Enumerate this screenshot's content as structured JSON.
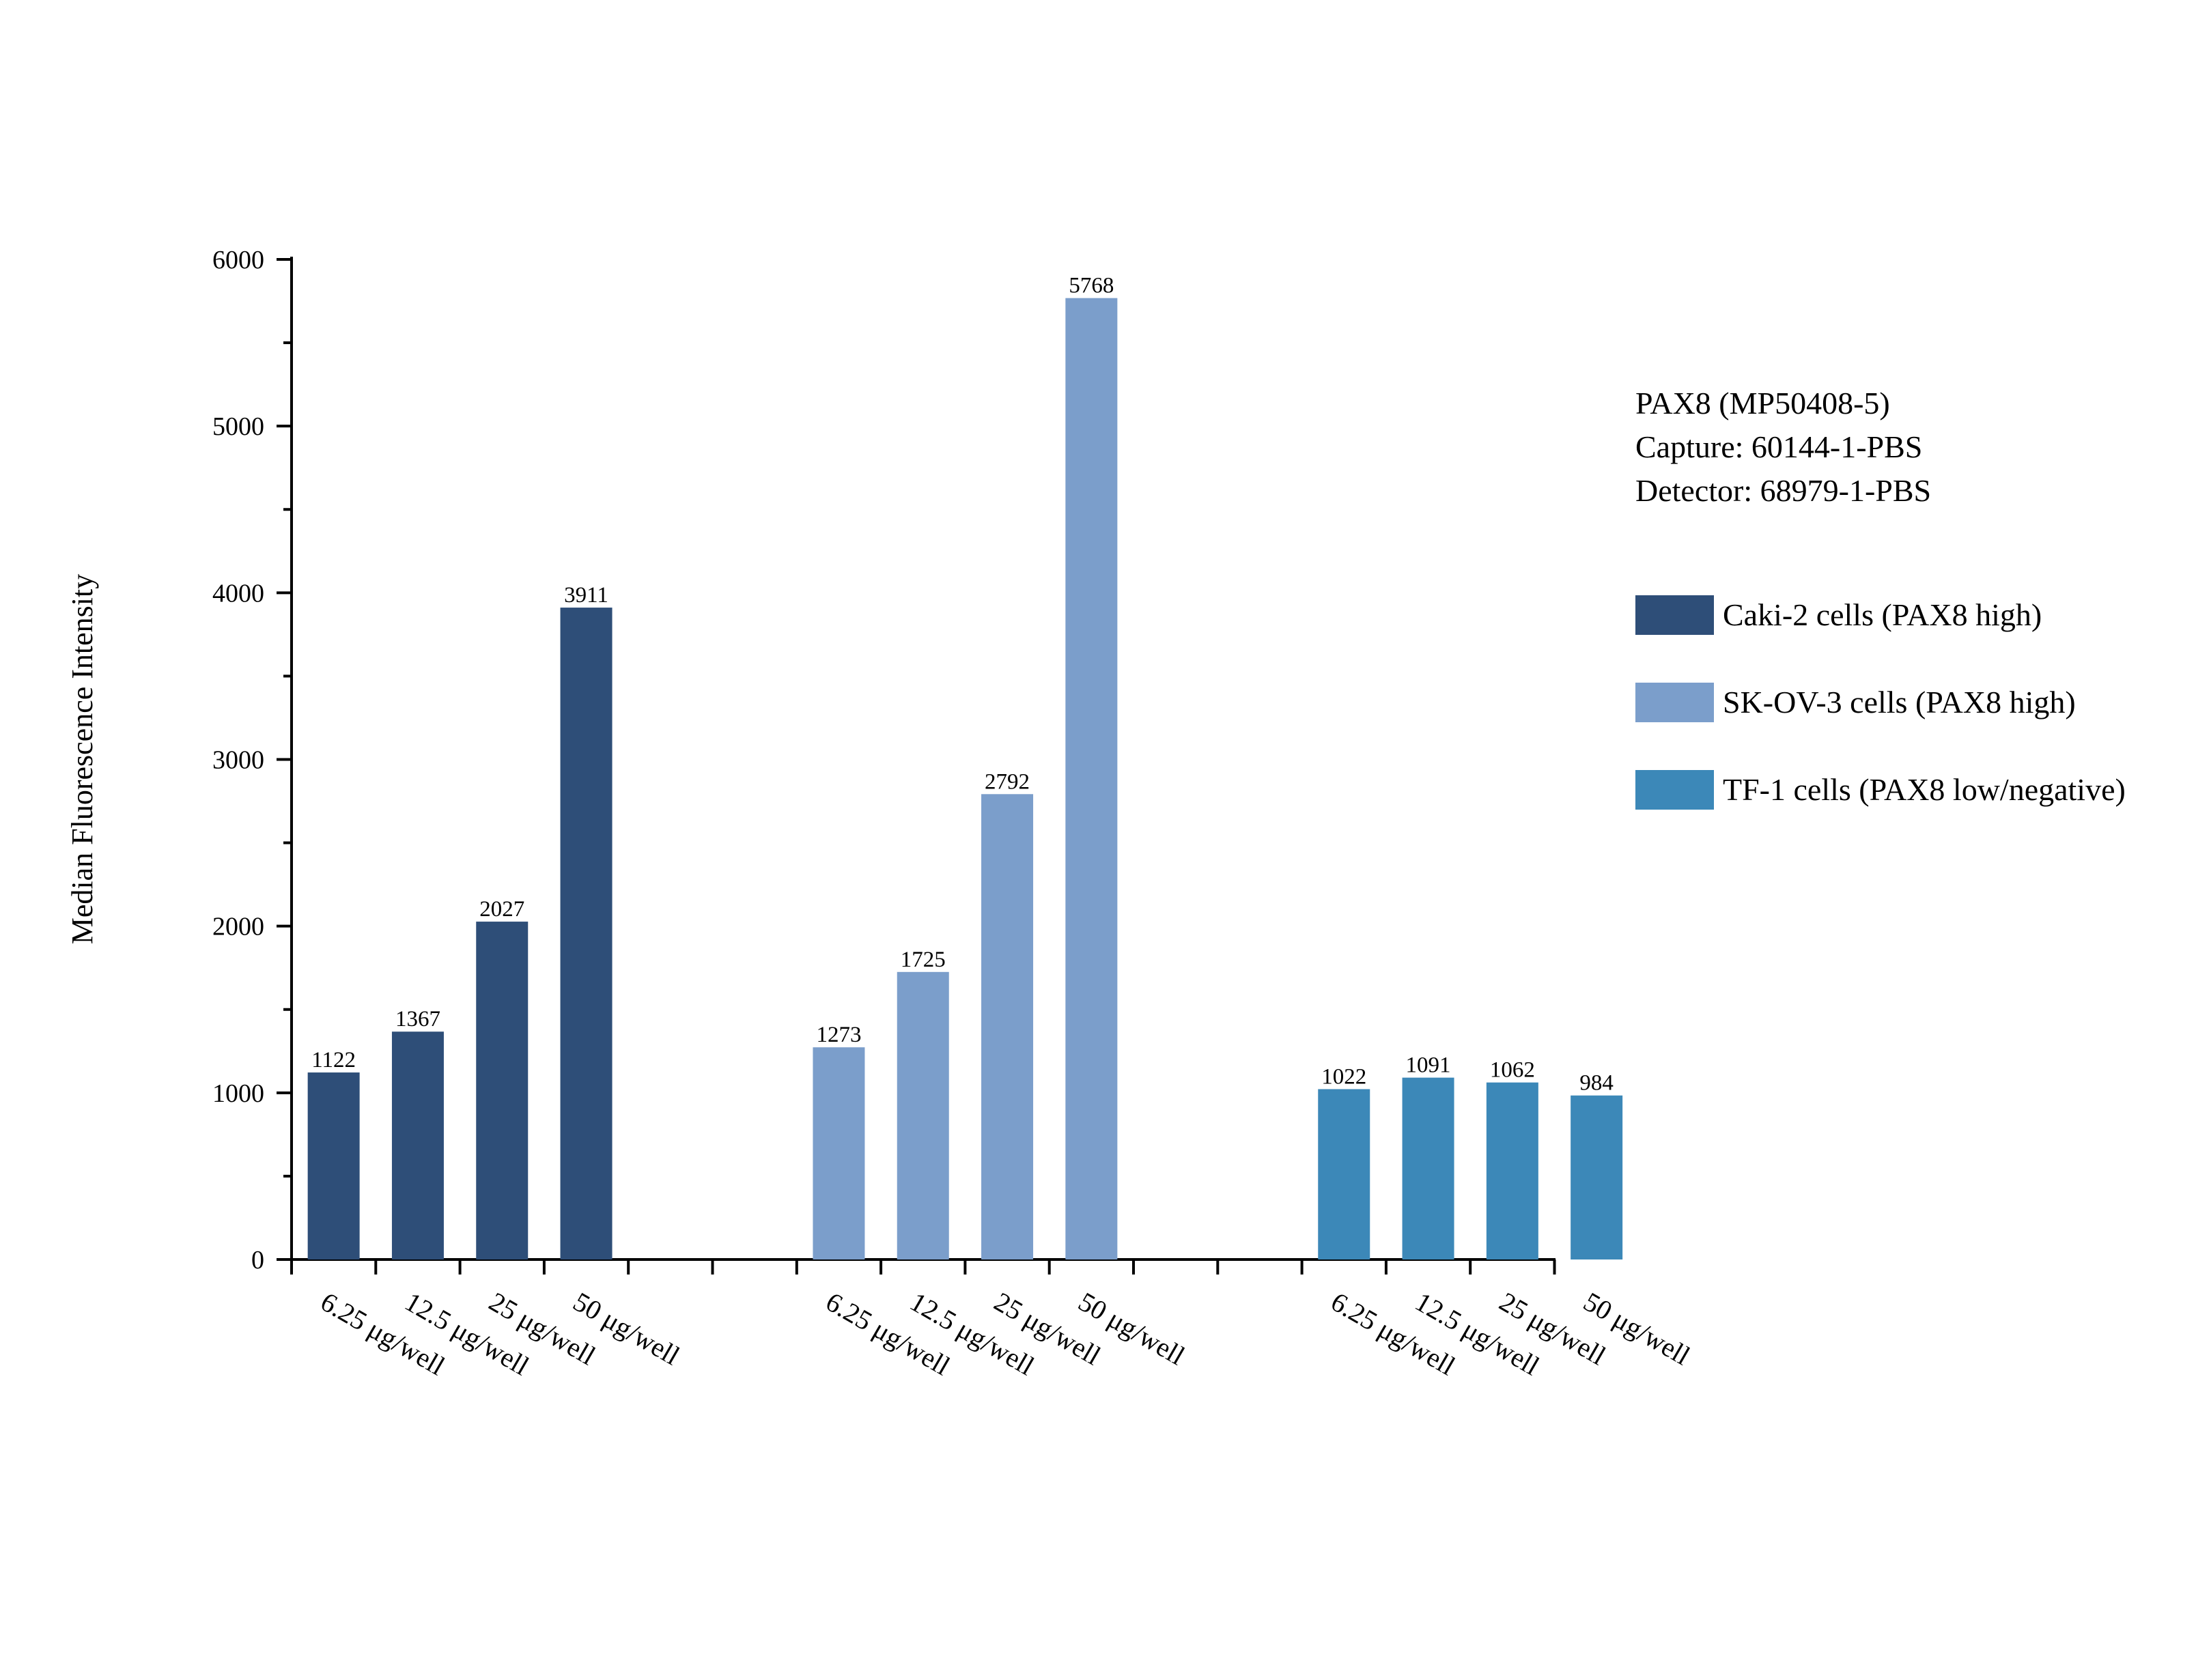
{
  "chart_data": {
    "type": "bar",
    "title": "",
    "xlabel": "",
    "ylabel": "Median Fluorescence Intensity",
    "ylim": [
      0,
      6000
    ],
    "y_major_ticks": [
      0,
      1000,
      2000,
      3000,
      4000,
      5000,
      6000
    ],
    "y_minor_step": 500,
    "grid": false,
    "legend_position": "right",
    "info_lines": [
      "PAX8 (MP50408-5)",
      "Capture: 60144-1-PBS",
      "Detector: 68979-1-PBS"
    ],
    "categories": [
      "6.25 μg/well",
      "12.5 μg/well",
      "25 μg/well",
      "50 μg/well"
    ],
    "series": [
      {
        "name": "Caki-2 cells (PAX8 high)",
        "color": "#2e4e78",
        "values": [
          1122,
          1367,
          2027,
          3911
        ]
      },
      {
        "name": "SK-OV-3 cells (PAX8 high)",
        "color": "#7b9ecb",
        "values": [
          1273,
          1725,
          2792,
          5768
        ]
      },
      {
        "name": "TF-1 cells (PAX8 low/negative)",
        "color": "#3c88b8",
        "values": [
          1022,
          1091,
          1062,
          984
        ]
      }
    ]
  }
}
